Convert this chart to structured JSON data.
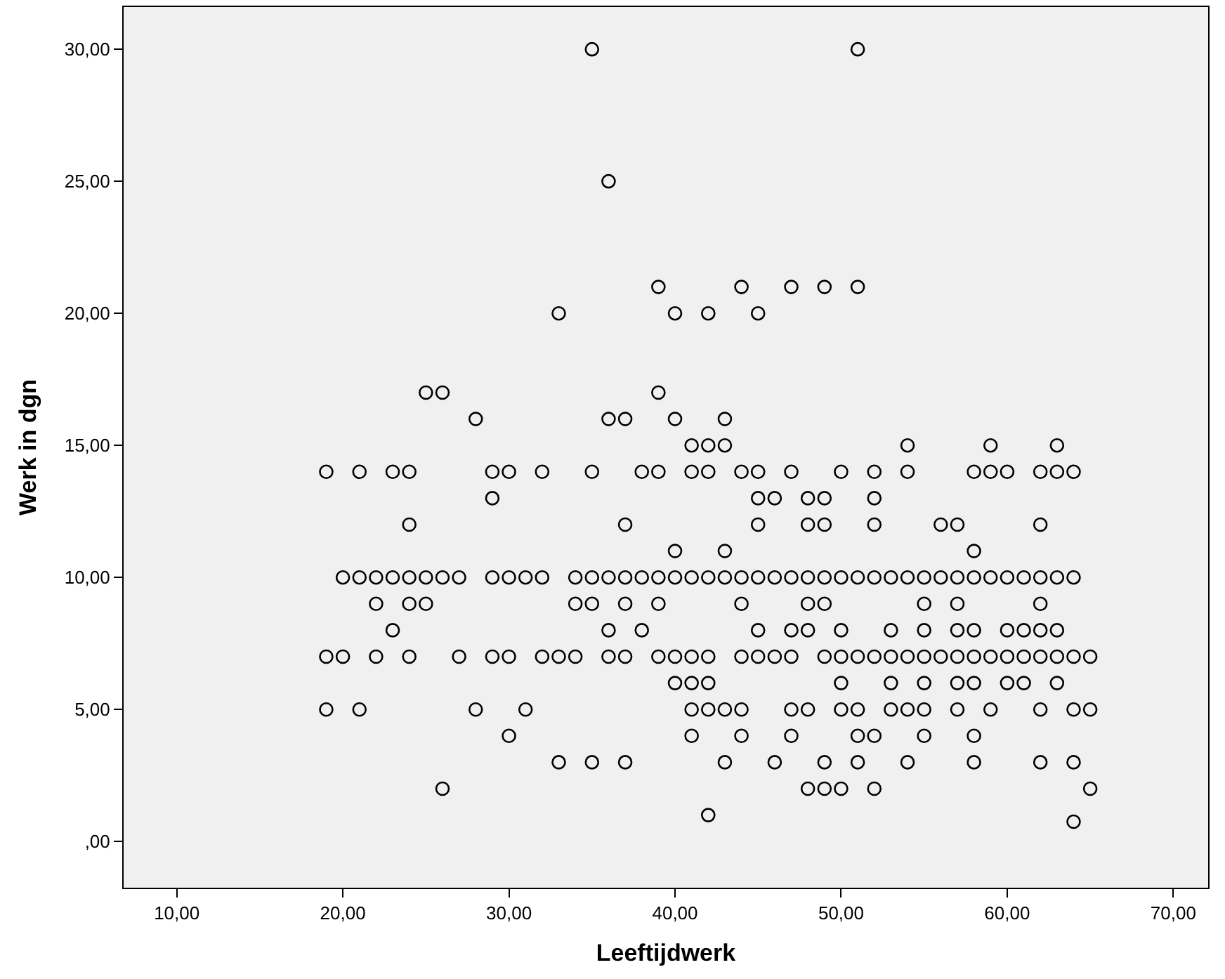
{
  "chart_data": {
    "type": "scatter",
    "xlabel": "Leeftijdwerk",
    "ylabel": "Werk in dgn",
    "x": [
      35,
      51,
      36,
      39,
      44,
      47,
      49,
      51,
      33,
      40,
      42,
      45,
      25,
      26,
      39,
      28,
      36,
      37,
      40,
      43,
      41,
      42,
      43,
      54,
      59,
      63,
      19,
      21,
      23,
      24,
      29,
      30,
      32,
      35,
      38,
      39,
      41,
      42,
      44,
      45,
      47,
      50,
      52,
      54,
      58,
      59,
      60,
      62,
      63,
      64,
      29,
      45,
      46,
      48,
      49,
      52,
      24,
      37,
      45,
      48,
      49,
      52,
      56,
      57,
      62,
      40,
      43,
      58,
      20,
      21,
      22,
      23,
      24,
      25,
      26,
      27,
      29,
      30,
      31,
      32,
      34,
      35,
      36,
      37,
      38,
      39,
      40,
      41,
      42,
      43,
      44,
      45,
      46,
      47,
      48,
      49,
      50,
      51,
      52,
      53,
      54,
      55,
      56,
      57,
      58,
      59,
      60,
      61,
      62,
      63,
      64,
      22,
      24,
      25,
      34,
      35,
      37,
      39,
      44,
      48,
      49,
      55,
      57,
      62,
      23,
      36,
      38,
      45,
      47,
      48,
      50,
      53,
      55,
      57,
      58,
      60,
      61,
      62,
      63,
      19,
      20,
      22,
      24,
      27,
      29,
      30,
      32,
      33,
      34,
      36,
      37,
      39,
      40,
      41,
      42,
      44,
      45,
      46,
      47,
      49,
      50,
      51,
      52,
      53,
      54,
      55,
      56,
      57,
      58,
      59,
      60,
      61,
      62,
      63,
      64,
      65,
      40,
      41,
      42,
      50,
      53,
      55,
      57,
      58,
      60,
      61,
      63,
      19,
      21,
      28,
      31,
      41,
      42,
      43,
      44,
      47,
      48,
      50,
      51,
      53,
      54,
      55,
      57,
      59,
      62,
      64,
      65,
      30,
      41,
      44,
      47,
      51,
      52,
      55,
      58,
      33,
      35,
      37,
      43,
      46,
      49,
      51,
      54,
      58,
      62,
      64,
      26,
      48,
      49,
      50,
      52,
      65,
      42,
      64
    ],
    "values": [
      30,
      30,
      25,
      21,
      21,
      21,
      21,
      21,
      20,
      20,
      20,
      20,
      17,
      17,
      17,
      16,
      16,
      16,
      16,
      16,
      15,
      15,
      15,
      15,
      15,
      15,
      14,
      14,
      14,
      14,
      14,
      14,
      14,
      14,
      14,
      14,
      14,
      14,
      14,
      14,
      14,
      14,
      14,
      14,
      14,
      14,
      14,
      14,
      14,
      14,
      13,
      13,
      13,
      13,
      13,
      13,
      12,
      12,
      12,
      12,
      12,
      12,
      12,
      12,
      12,
      11,
      11,
      11,
      10,
      10,
      10,
      10,
      10,
      10,
      10,
      10,
      10,
      10,
      10,
      10,
      10,
      10,
      10,
      10,
      10,
      10,
      10,
      10,
      10,
      10,
      10,
      10,
      10,
      10,
      10,
      10,
      10,
      10,
      10,
      10,
      10,
      10,
      10,
      10,
      10,
      10,
      10,
      10,
      10,
      10,
      10,
      9,
      9,
      9,
      9,
      9,
      9,
      9,
      9,
      9,
      9,
      9,
      9,
      9,
      8,
      8,
      8,
      8,
      8,
      8,
      8,
      8,
      8,
      8,
      8,
      8,
      8,
      8,
      8,
      7,
      7,
      7,
      7,
      7,
      7,
      7,
      7,
      7,
      7,
      7,
      7,
      7,
      7,
      7,
      7,
      7,
      7,
      7,
      7,
      7,
      7,
      7,
      7,
      7,
      7,
      7,
      7,
      7,
      7,
      7,
      7,
      7,
      7,
      7,
      7,
      7,
      6,
      6,
      6,
      6,
      6,
      6,
      6,
      6,
      6,
      6,
      6,
      5,
      5,
      5,
      5,
      5,
      5,
      5,
      5,
      5,
      5,
      5,
      5,
      5,
      5,
      5,
      5,
      5,
      5,
      5,
      5,
      4,
      4,
      4,
      4,
      4,
      4,
      4,
      4,
      3,
      3,
      3,
      3,
      3,
      3,
      3,
      3,
      3,
      3,
      3,
      2,
      2,
      2,
      2,
      2,
      2,
      1,
      0.75
    ],
    "color": "#000000",
    "marker": "circle",
    "xlim": [
      6.8,
      72.1
    ],
    "ylim": [
      -1.75,
      31.6
    ],
    "xticks": [
      {
        "value": 10,
        "label": "10,00"
      },
      {
        "value": 20,
        "label": "20,00"
      },
      {
        "value": 30,
        "label": "30,00"
      },
      {
        "value": 40,
        "label": "40,00"
      },
      {
        "value": 50,
        "label": "50,00"
      },
      {
        "value": 60,
        "label": "60,00"
      },
      {
        "value": 70,
        "label": "70,00"
      }
    ],
    "yticks": [
      {
        "value": 0,
        "label": ",00"
      },
      {
        "value": 5,
        "label": "5,00"
      },
      {
        "value": 10,
        "label": "10,00"
      },
      {
        "value": 15,
        "label": "15,00"
      },
      {
        "value": 20,
        "label": "20,00"
      },
      {
        "value": 25,
        "label": "25,00"
      },
      {
        "value": 30,
        "label": "30,00"
      }
    ],
    "grid": false
  }
}
